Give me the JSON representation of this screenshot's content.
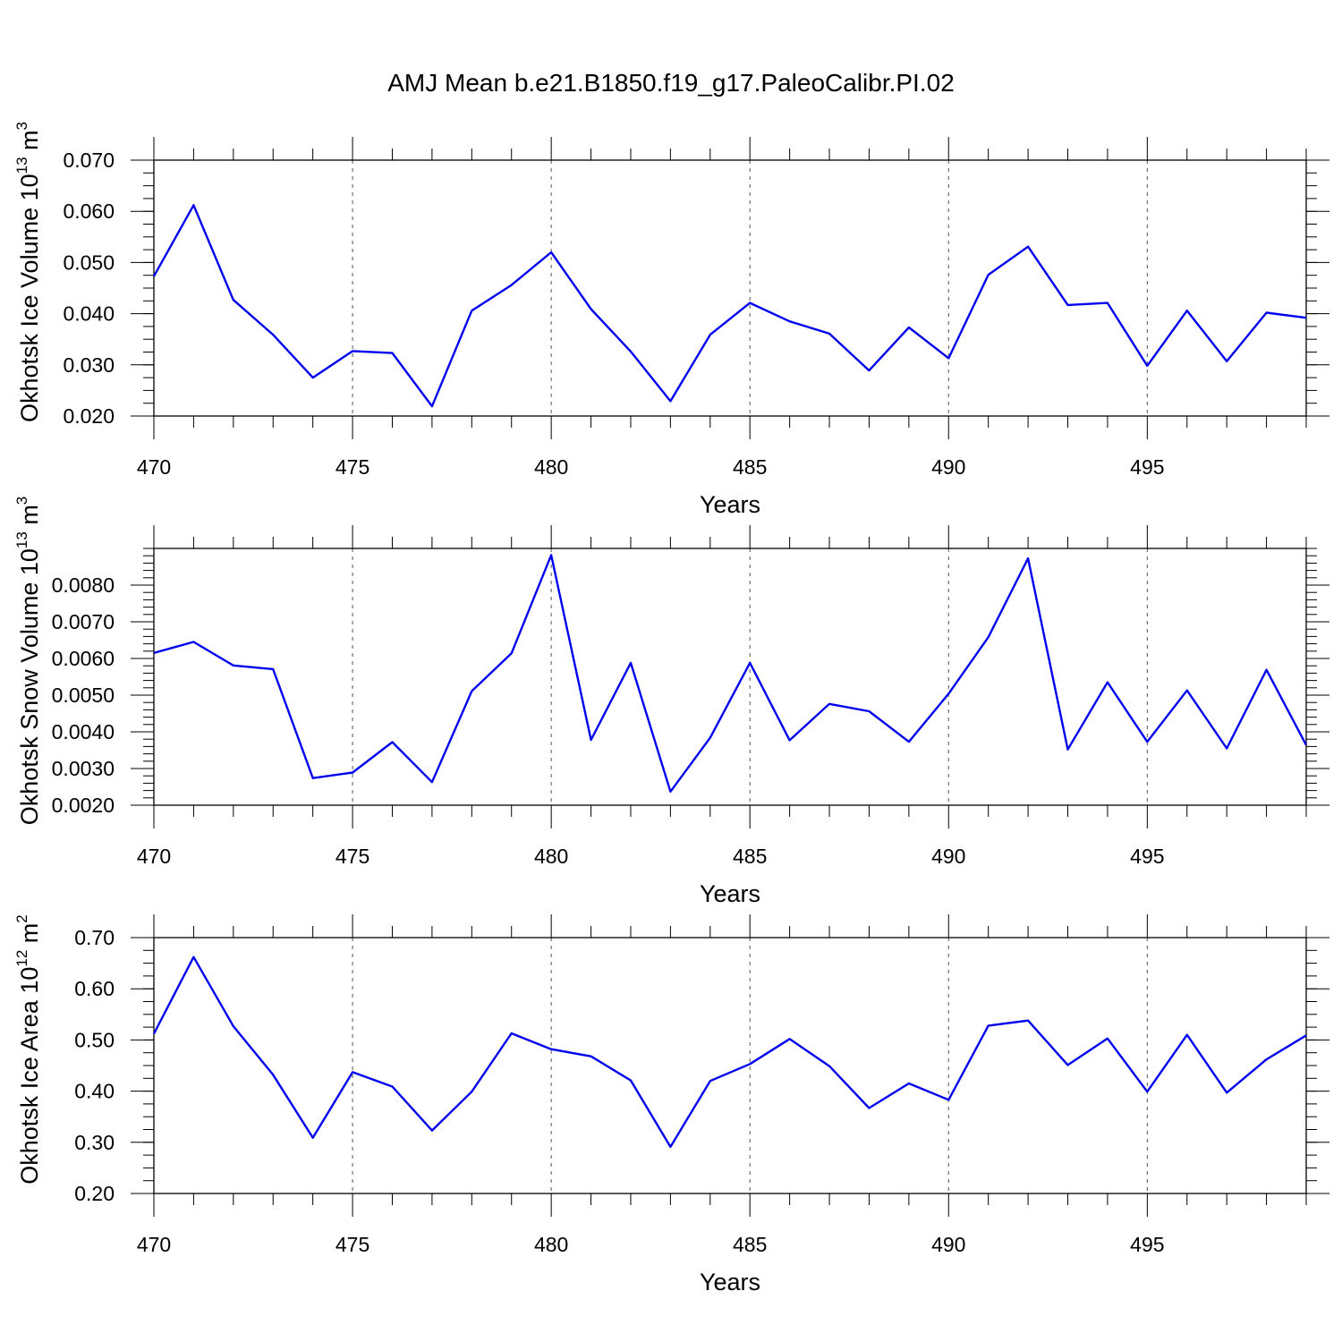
{
  "title": "AMJ Mean b.e21.B1850.f19_g17.PaleoCalibr.PI.02",
  "colors": {
    "line": "#0000ee",
    "frame": "#000000",
    "grid": "#555555"
  },
  "chart_data": [
    {
      "type": "line",
      "xlabel": "Years",
      "ylabel": {
        "prefix": "Okhotsk Ice Volume 10",
        "exp": "13",
        "unit": " m",
        "unit_exp": "3"
      },
      "xlim": [
        470,
        499
      ],
      "ylim": [
        0.02,
        0.07
      ],
      "xticks": [
        470,
        475,
        480,
        485,
        490,
        495
      ],
      "yticks": [
        0.02,
        0.03,
        0.04,
        0.05,
        0.06,
        0.07
      ],
      "ytick_labels": [
        "0.020",
        "0.030",
        "0.040",
        "0.050",
        "0.060",
        "0.070"
      ],
      "yminor": 0.0025,
      "x": [
        470,
        471,
        472,
        473,
        474,
        475,
        476,
        477,
        478,
        479,
        480,
        481,
        482,
        483,
        484,
        485,
        486,
        487,
        488,
        489,
        490,
        491,
        492,
        493,
        494,
        495,
        496,
        497,
        498,
        499
      ],
      "y": [
        0.0473,
        0.0612,
        0.0427,
        0.0359,
        0.0275,
        0.0327,
        0.0323,
        0.0219,
        0.0406,
        0.0456,
        0.052,
        0.0409,
        0.0326,
        0.0229,
        0.0359,
        0.0421,
        0.0385,
        0.0361,
        0.0289,
        0.0373,
        0.0313,
        0.0476,
        0.0531,
        0.0417,
        0.0421,
        0.0298,
        0.0406,
        0.0307,
        0.0402,
        0.0392
      ]
    },
    {
      "type": "line",
      "xlabel": "Years",
      "ylabel": {
        "prefix": "Okhotsk Snow Volume 10",
        "exp": "13",
        "unit": " m",
        "unit_exp": "3"
      },
      "xlim": [
        470,
        499
      ],
      "ylim": [
        0.002,
        0.009
      ],
      "xticks": [
        470,
        475,
        480,
        485,
        490,
        495
      ],
      "yticks": [
        0.002,
        0.003,
        0.004,
        0.005,
        0.006,
        0.007,
        0.008
      ],
      "ytick_labels": [
        "0.0020",
        "0.0030",
        "0.0040",
        "0.0050",
        "0.0060",
        "0.0070",
        "0.0080"
      ],
      "yminor": 0.0002,
      "x": [
        470,
        471,
        472,
        473,
        474,
        475,
        476,
        477,
        478,
        479,
        480,
        481,
        482,
        483,
        484,
        485,
        486,
        487,
        488,
        489,
        490,
        491,
        492,
        493,
        494,
        495,
        496,
        497,
        498,
        499
      ],
      "y": [
        0.00615,
        0.00645,
        0.00581,
        0.00571,
        0.00274,
        0.00289,
        0.00372,
        0.00263,
        0.00511,
        0.00614,
        0.00882,
        0.00378,
        0.00588,
        0.00237,
        0.00384,
        0.00588,
        0.00377,
        0.00476,
        0.00456,
        0.00373,
        0.00504,
        0.00658,
        0.00873,
        0.00352,
        0.00535,
        0.00373,
        0.00513,
        0.00355,
        0.00569,
        0.00364
      ]
    },
    {
      "type": "line",
      "xlabel": "Years",
      "ylabel": {
        "prefix": "Okhotsk Ice Area 10",
        "exp": "12",
        "unit": " m",
        "unit_exp": "2"
      },
      "xlim": [
        470,
        499
      ],
      "ylim": [
        0.2,
        0.7
      ],
      "xticks": [
        470,
        475,
        480,
        485,
        490,
        495
      ],
      "yticks": [
        0.2,
        0.3,
        0.4,
        0.5,
        0.6,
        0.7
      ],
      "ytick_labels": [
        "0.20",
        "0.30",
        "0.40",
        "0.50",
        "0.60",
        "0.70"
      ],
      "yminor": 0.025,
      "x": [
        470,
        471,
        472,
        473,
        474,
        475,
        476,
        477,
        478,
        479,
        480,
        481,
        482,
        483,
        484,
        485,
        486,
        487,
        488,
        489,
        490,
        491,
        492,
        493,
        494,
        495,
        496,
        497,
        498,
        499
      ],
      "y": [
        0.512,
        0.662,
        0.527,
        0.432,
        0.309,
        0.437,
        0.409,
        0.323,
        0.399,
        0.513,
        0.482,
        0.468,
        0.421,
        0.291,
        0.42,
        0.453,
        0.502,
        0.449,
        0.367,
        0.415,
        0.383,
        0.528,
        0.538,
        0.451,
        0.503,
        0.399,
        0.51,
        0.397,
        0.462,
        0.509
      ]
    }
  ]
}
